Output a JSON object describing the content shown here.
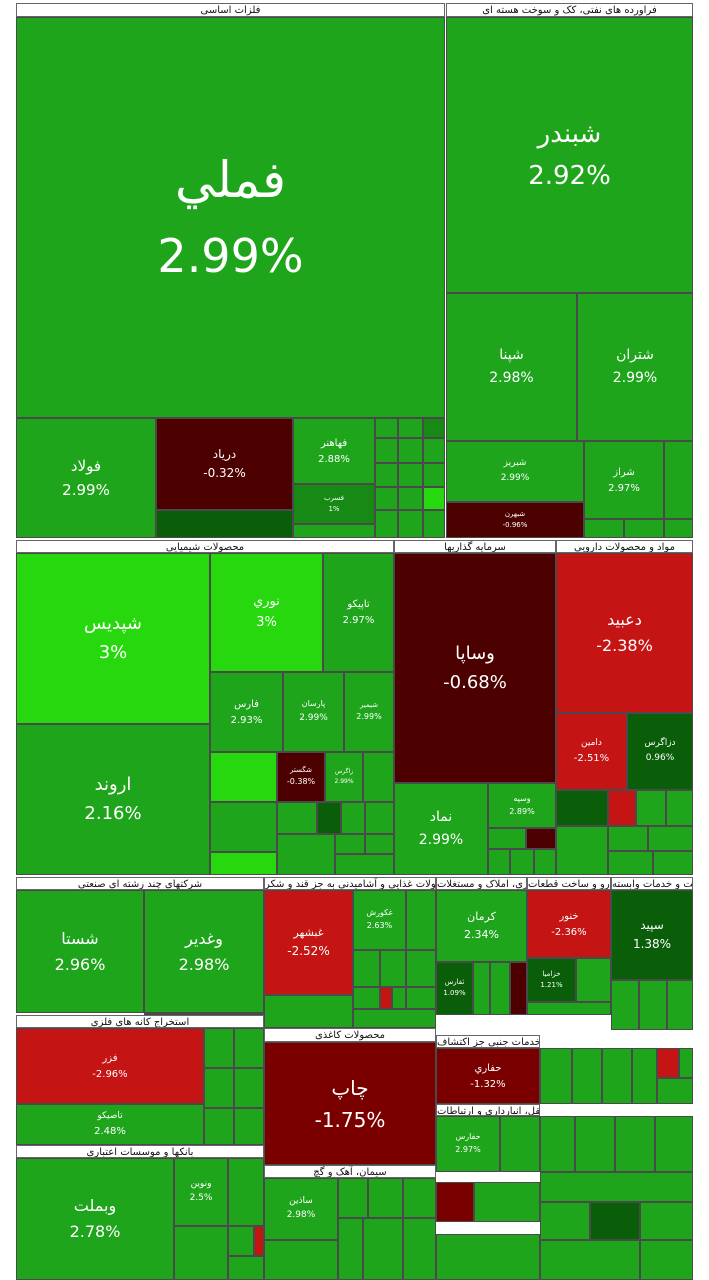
{
  "chart_data": {
    "type": "treemap",
    "sectors": [
      {
        "name": "فلزات اساسی",
        "items": [
          {
            "name": "فملي",
            "change": 2.99
          },
          {
            "name": "فولاد",
            "change": 2.99
          },
          {
            "name": "درياد",
            "change": -0.32
          },
          {
            "name": "فهاهنر",
            "change": 2.88
          },
          {
            "name": "فسرب",
            "change": 1
          }
        ]
      },
      {
        "name": "فراورده های نفتی، کک و سوخت هسته ای",
        "items": [
          {
            "name": "شبندر",
            "change": 2.92
          },
          {
            "name": "شپنا",
            "change": 2.98
          },
          {
            "name": "شتران",
            "change": 2.99
          },
          {
            "name": "شبریز",
            "change": 2.99
          },
          {
            "name": "شراز",
            "change": 2.97
          },
          {
            "name": "شبهرن",
            "change": -0.96
          }
        ]
      },
      {
        "name": "محصولات شیمیایی",
        "items": [
          {
            "name": "شپديس",
            "change": 3
          },
          {
            "name": "اروند",
            "change": 2.16
          },
          {
            "name": "نوري",
            "change": 3
          },
          {
            "name": "تاپيکو",
            "change": 2.97
          },
          {
            "name": "فارس",
            "change": 2.93
          },
          {
            "name": "پارسان",
            "change": 2.99
          },
          {
            "name": "شيمير",
            "change": 2.99
          },
          {
            "name": "شگستر",
            "change": -0.38
          },
          {
            "name": "زاگرس",
            "change": 2.99
          }
        ]
      },
      {
        "name": "سرمایه گذاریها",
        "items": [
          {
            "name": "وساپا",
            "change": -0.68
          },
          {
            "name": "نماد",
            "change": 2.99
          },
          {
            "name": "وسپه",
            "change": 2.89
          }
        ]
      },
      {
        "name": "مواد و محصولات دارویی",
        "items": [
          {
            "name": "دعبيد",
            "change": -2.38
          },
          {
            "name": "دامين",
            "change": -2.51
          },
          {
            "name": "دزاگرس",
            "change": 0.96
          }
        ]
      },
      {
        "name": "شرکتهای چند رشته ای صنعتی",
        "items": [
          {
            "name": "شستا",
            "change": 2.96
          },
          {
            "name": "وغدير",
            "change": 2.98
          }
        ]
      },
      {
        "name": "محصولات غذایی و آشامیدنی به جز قند و شکر",
        "items": [
          {
            "name": "غبشهر",
            "change": -2.52
          },
          {
            "name": "غکورش",
            "change": 2.63
          }
        ]
      },
      {
        "name": "انبوه سازی، املاک و مستغلات",
        "items": [
          {
            "name": "كرمان",
            "change": 2.34
          },
          {
            "name": "ثفارس",
            "change": 1.09
          }
        ]
      },
      {
        "name": "خودرو و ساخت قطعات",
        "items": [
          {
            "name": "خنور",
            "change": -2.36
          },
          {
            "name": "خزاميا",
            "change": 1.21
          }
        ]
      },
      {
        "name": "زراعت و خدمات وابسته",
        "items": [
          {
            "name": "سپيد",
            "change": 1.38
          }
        ]
      },
      {
        "name": "استخراج کانه های فلزی",
        "items": [
          {
            "name": "فزر",
            "change": -2.96
          },
          {
            "name": "تاصيكو",
            "change": 2.48
          }
        ]
      },
      {
        "name": "محصولات کاغذی",
        "items": [
          {
            "name": "چاپ",
            "change": -1.75
          }
        ]
      },
      {
        "name": "استخراج نفت گاز و خدمات جنبی جز اکتشاف",
        "items": [
          {
            "name": "حفاري",
            "change": -1.32
          }
        ]
      },
      {
        "name": "حمل ونقل، انبارداری و ارتباطات",
        "items": [
          {
            "name": "حفارس",
            "change": 2.97
          }
        ]
      },
      {
        "name": "بانکها و موسسات اعتباری",
        "items": [
          {
            "name": "وبملت",
            "change": 2.78
          },
          {
            "name": "ونوين",
            "change": 2.5
          }
        ]
      },
      {
        "name": "سیمان، آهک و گچ",
        "items": [
          {
            "name": "ساذين",
            "change": 2.98
          }
        ]
      }
    ],
    "colors": {
      "bright_green": "#27d80f",
      "green": "#1fa51c",
      "mid_green": "#168a15",
      "dark_green": "#0a5e0a",
      "dark_red": "#4d0000",
      "maroon": "#7a0000",
      "red": "#c41414",
      "frame": "#4a4a4a",
      "label_bg": "#ffffff"
    }
  }
}
